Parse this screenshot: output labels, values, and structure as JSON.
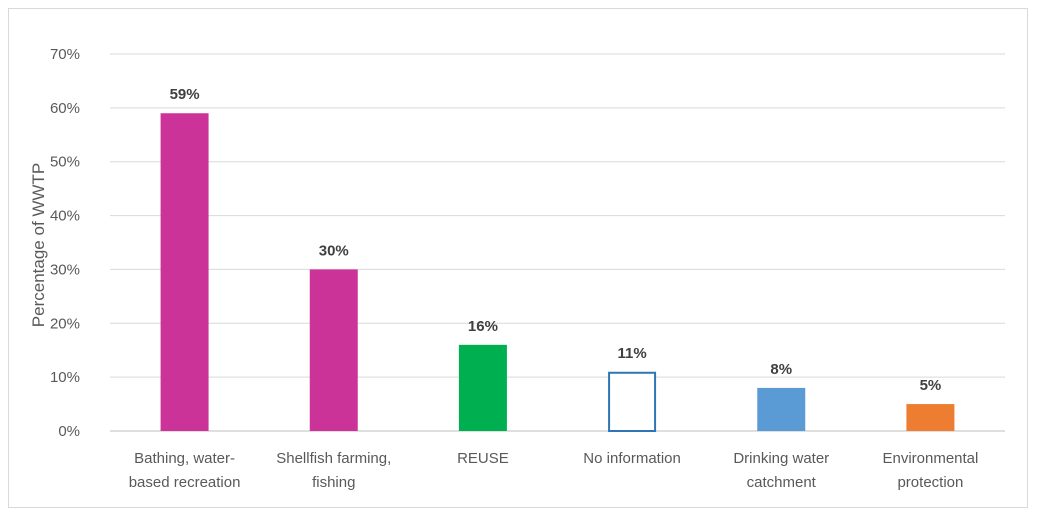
{
  "chart_data": {
    "type": "bar",
    "title": "",
    "xlabel": "",
    "ylabel": "Percentage of WWTP",
    "ylim": [
      0,
      70
    ],
    "yticks": [
      "0%",
      "10%",
      "20%",
      "30%",
      "40%",
      "50%",
      "60%",
      "70%"
    ],
    "ytick_values": [
      0,
      10,
      20,
      30,
      40,
      50,
      60,
      70
    ],
    "grid": true,
    "legend": "none",
    "categories": [
      [
        "Bathing, water-",
        "based recreation"
      ],
      [
        "Shellfish farming,",
        "fishing"
      ],
      [
        "REUSE"
      ],
      [
        "No information"
      ],
      [
        "Drinking water",
        "catchment"
      ],
      [
        "Environmental",
        "protection"
      ]
    ],
    "values": [
      59,
      30,
      16,
      11,
      8,
      5
    ],
    "data_labels": [
      "59%",
      "30%",
      "16%",
      "11%",
      "8%",
      "5%"
    ],
    "bar_styles": [
      {
        "fill": "#cc3399",
        "stroke": "none"
      },
      {
        "fill": "#cc3399",
        "stroke": "none"
      },
      {
        "fill": "#00b050",
        "stroke": "none"
      },
      {
        "fill": "#ffffff",
        "stroke": "#2e75b6"
      },
      {
        "fill": "#5b9bd5",
        "stroke": "none"
      },
      {
        "fill": "#ed7d31",
        "stroke": "none"
      }
    ],
    "colors": {
      "grid": "#d9d9d9",
      "axis": "#bfbfbf"
    }
  }
}
